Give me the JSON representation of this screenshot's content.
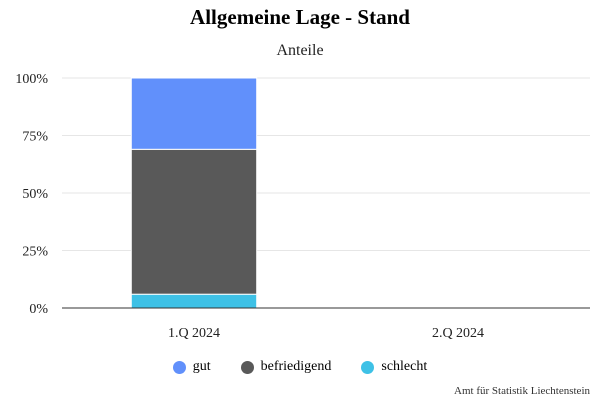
{
  "chart_data": {
    "type": "bar",
    "stacked": true,
    "title": "Allgemeine Lage - Stand",
    "subtitle": "Anteile",
    "categories": [
      "1.Q 2024",
      "2.Q 2024"
    ],
    "series": [
      {
        "name": "schlecht",
        "color": "#3ec1e6",
        "values": [
          6,
          null
        ]
      },
      {
        "name": "befriedigend",
        "color": "#595959",
        "values": [
          63,
          null
        ]
      },
      {
        "name": "gut",
        "color": "#6190fb",
        "values": [
          31,
          null
        ]
      }
    ],
    "legend_order": [
      "gut",
      "befriedigend",
      "schlecht"
    ],
    "ylim": [
      0,
      100
    ],
    "yticks": [
      "0%",
      "25%",
      "50%",
      "75%",
      "100%"
    ],
    "grid": true,
    "legend_position": "bottom",
    "credit": "Amt für Statistik Liechtenstein"
  }
}
